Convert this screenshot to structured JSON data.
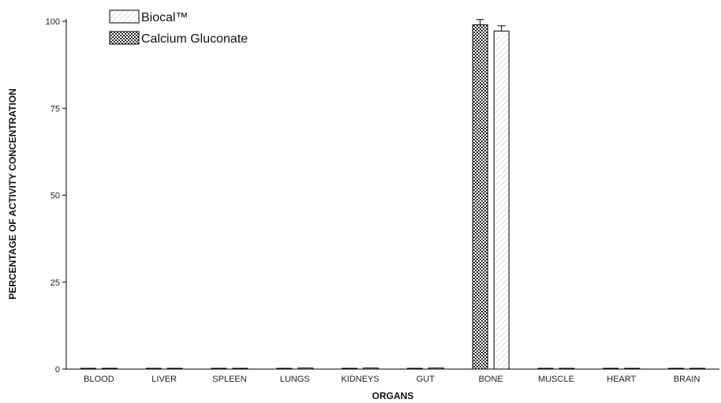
{
  "chart_data": {
    "type": "bar",
    "xlabel": "ORGANS",
    "ylabel": "PERCENTAGE OF ACTIVITY CONCENTRATION",
    "ylim": [
      0,
      100
    ],
    "yticks": [
      0,
      25,
      50,
      75,
      100
    ],
    "grid": false,
    "legend_position": "top-left",
    "categories": [
      "BLOOD",
      "LIVER",
      "SPLEEN",
      "LUNGS",
      "KIDNEYS",
      "GUT",
      "BONE",
      "MUSCLE",
      "HEART",
      "BRAIN"
    ],
    "series": [
      {
        "name": "Calcium Gluconate",
        "values": [
          0.1,
          0.1,
          0.1,
          0.1,
          0.1,
          0.1,
          99.0,
          0.1,
          0.1,
          0.2
        ],
        "errors": [
          0,
          0,
          0,
          0,
          0,
          0,
          1.5,
          0,
          0,
          0
        ]
      },
      {
        "name": "Biocal™",
        "values": [
          0.2,
          0.2,
          0.2,
          0.3,
          0.3,
          0.3,
          97.2,
          0.2,
          0.1,
          0.2
        ],
        "errors": [
          0,
          0,
          0,
          0,
          0,
          0,
          1.5,
          0,
          0,
          0
        ]
      }
    ],
    "legend": [
      "Biocal™",
      "Calcium Gluconate"
    ],
    "colors": {
      "axis": "#000000",
      "calcium_fill": "#555555",
      "biocal_fill": "#f2f2f2"
    }
  }
}
